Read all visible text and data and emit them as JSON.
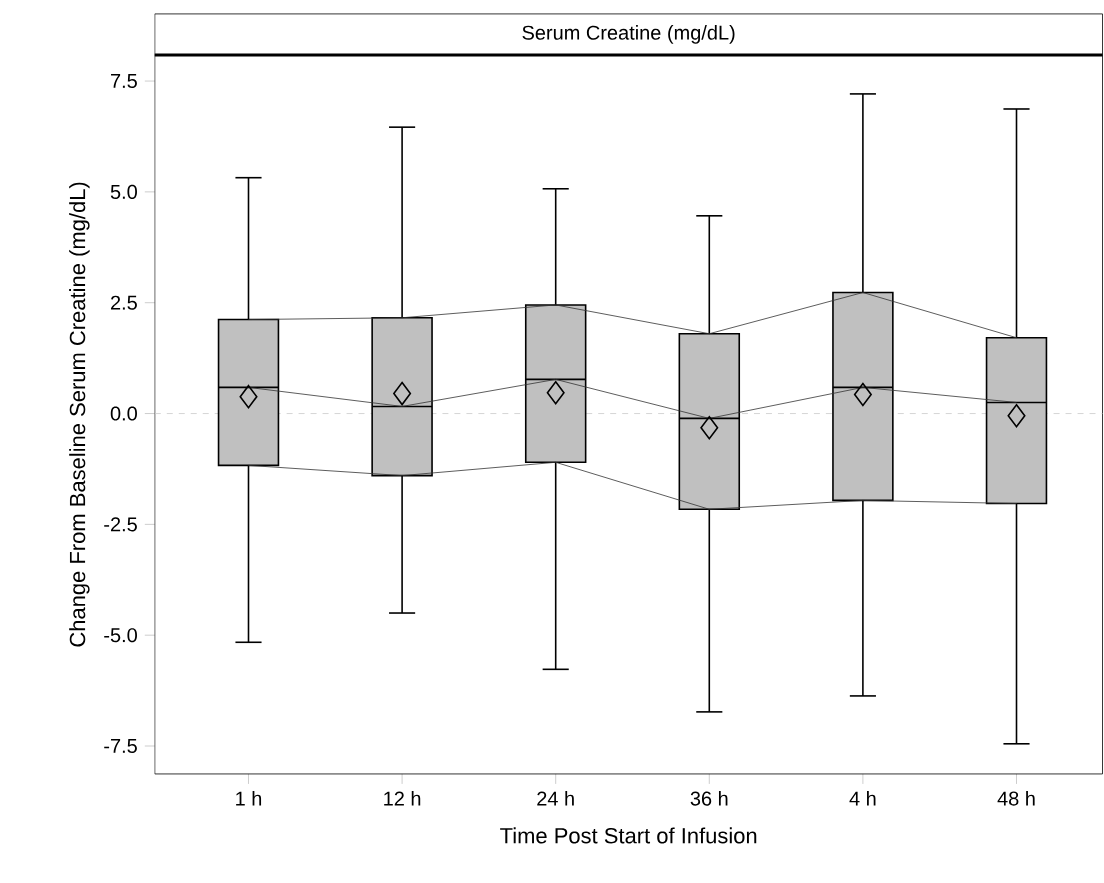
{
  "chart_data": {
    "type": "box",
    "title": "Serum Creatine (mg/dL)",
    "xlabel": "Time Post Start of Infusion",
    "ylabel": "Change From Baseline Serum Creatine (mg/dL)",
    "categories": [
      "1 h",
      "12 h",
      "24 h",
      "36 h",
      "4 h",
      "48 h"
    ],
    "ylim": [
      -8.13,
      8.09
    ],
    "yticks": [
      {
        "value": -7.5,
        "label": "-7.5"
      },
      {
        "value": -5,
        "label": "-5.0"
      },
      {
        "value": -2.5,
        "label": "-2.5"
      },
      {
        "value": 0,
        "label": "0.0"
      },
      {
        "value": 2.5,
        "label": "2.5"
      },
      {
        "value": 5,
        "label": "5.0"
      },
      {
        "value": 7.5,
        "label": "7.5"
      }
    ],
    "grid": false,
    "ref_lines": [
      {
        "axis": "y",
        "value": 0,
        "color": "#cccccc",
        "line_style": "dashed"
      }
    ],
    "series": [
      {
        "color": "#c0c0c0",
        "marker": "diamond",
        "boxes": [
          {
            "low": -5.16,
            "q1": -1.17,
            "median": 0.59,
            "q3": 2.12,
            "high": 5.32,
            "mean": 0.38
          },
          {
            "low": -4.5,
            "q1": -1.4,
            "median": 0.16,
            "q3": 2.16,
            "high": 6.46,
            "mean": 0.45
          },
          {
            "low": -5.77,
            "q1": -1.1,
            "median": 0.77,
            "q3": 2.45,
            "high": 5.07,
            "mean": 0.47
          },
          {
            "low": -6.73,
            "q1": -2.16,
            "median": -0.11,
            "q3": 1.8,
            "high": 4.46,
            "mean": -0.32
          },
          {
            "low": -6.37,
            "q1": -1.96,
            "median": 0.59,
            "q3": 2.73,
            "high": 7.21,
            "mean": 0.43
          },
          {
            "low": -7.45,
            "q1": -2.03,
            "median": 0.25,
            "q3": 1.71,
            "high": 6.87,
            "mean": -0.05
          }
        ]
      },
      {
        "type": "line",
        "color": "#333333",
        "line_style": "solid",
        "marker": "none",
        "values": [
          2.12,
          2.16,
          2.45,
          1.8,
          2.73,
          1.71
        ]
      },
      {
        "type": "line",
        "color": "#333333",
        "line_style": "solid",
        "marker": "none",
        "values": [
          0.59,
          0.16,
          0.77,
          -0.11,
          0.59,
          0.25
        ]
      },
      {
        "type": "line",
        "color": "#333333",
        "line_style": "solid",
        "marker": "none",
        "values": [
          -1.17,
          -1.4,
          -1.1,
          -2.16,
          -1.96,
          -2.03
        ]
      }
    ]
  }
}
